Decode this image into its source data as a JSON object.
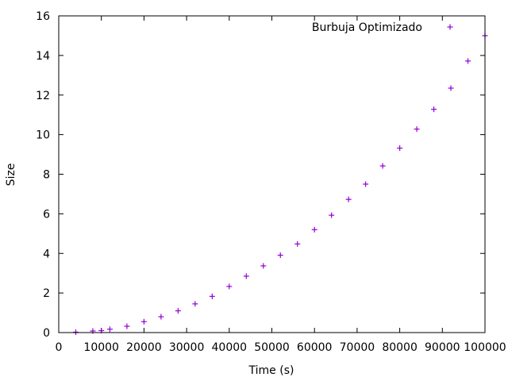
{
  "chart_data": {
    "type": "scatter",
    "title": "",
    "xlabel": "Time (s)",
    "ylabel": "Size",
    "xlim": [
      0,
      100000
    ],
    "ylim": [
      0,
      16
    ],
    "x_ticks": [
      "0",
      "10000",
      "20000",
      "30000",
      "40000",
      "50000",
      "60000",
      "70000",
      "80000",
      "90000",
      "100000"
    ],
    "y_ticks": [
      "0",
      "2",
      "4",
      "6",
      "8",
      "10",
      "12",
      "14",
      "16"
    ],
    "grid": false,
    "legend_position": "top-right",
    "series": [
      {
        "name": "Burbuja Optimizado",
        "color": "#9400d3",
        "marker": "plus",
        "points": [
          [
            4000,
            0.02
          ],
          [
            8000,
            0.08
          ],
          [
            10000,
            0.1
          ],
          [
            12000,
            0.17
          ],
          [
            16000,
            0.32
          ],
          [
            20000,
            0.55
          ],
          [
            24000,
            0.8
          ],
          [
            28000,
            1.1
          ],
          [
            32000,
            1.45
          ],
          [
            36000,
            1.83
          ],
          [
            40000,
            2.33
          ],
          [
            44000,
            2.85
          ],
          [
            48000,
            3.37
          ],
          [
            52000,
            3.91
          ],
          [
            56000,
            4.48
          ],
          [
            60000,
            5.2
          ],
          [
            64000,
            5.93
          ],
          [
            68000,
            6.73
          ],
          [
            72000,
            7.5
          ],
          [
            76000,
            8.42
          ],
          [
            80000,
            9.32
          ],
          [
            84000,
            10.28
          ],
          [
            88000,
            11.28
          ],
          [
            92000,
            12.35
          ],
          [
            96000,
            13.72
          ],
          [
            100000,
            15.0
          ]
        ]
      }
    ]
  }
}
